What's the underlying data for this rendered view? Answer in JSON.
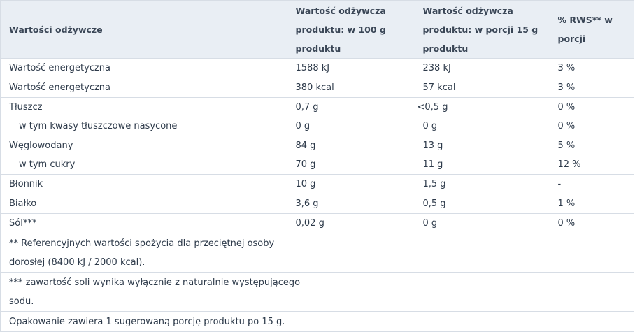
{
  "headers": {
    "col1": "Wartości odżywcze",
    "col2": "Wartość odżywcza produktu: w 100 g produktu",
    "col3": "Wartość odżywcza produktu: w porcji 15 g produktu",
    "col4": "% RWS** w porcji"
  },
  "rows": [
    {
      "name": "Wartość energetyczna",
      "per100": "1588 kJ",
      "perPortion": "238 kJ",
      "rws": "3 %"
    },
    {
      "name": "Wartość energetyczna",
      "per100": "380 kcal",
      "perPortion": "57 kcal",
      "rws": "3 %"
    },
    {
      "name": "Tłuszcz",
      "per100": "0,7 g",
      "perPortion": "<0,5 g",
      "rws": "0 %"
    },
    {
      "name": "w tym kwasy tłuszczowe nasycone",
      "per100": "0 g",
      "perPortion": "0 g",
      "rws": "0 %"
    },
    {
      "name": "Węglowodany",
      "per100": "84 g",
      "perPortion": "13 g",
      "rws": "5 %"
    },
    {
      "name": "w tym cukry",
      "per100": "70 g",
      "perPortion": "11 g",
      "rws": "12 %"
    },
    {
      "name": "Błonnik",
      "per100": "10 g",
      "perPortion": "1,5 g",
      "rws": "-"
    },
    {
      "name": "Białko",
      "per100": "3,6 g",
      "perPortion": "0,5 g",
      "rws": "1 %"
    },
    {
      "name": "Sól***",
      "per100": "0,02 g",
      "perPortion": "0 g",
      "rws": "0 %"
    }
  ],
  "notes": {
    "rws_line1": "** Referencyjnych wartości spożycia dla przeciętnej osoby",
    "rws_line2": "dorosłej (8400 kJ / 2000 kcal).",
    "salt_line1": "*** zawartość soli wynika wyłącznie z naturalnie występującego",
    "salt_line2": "sodu.",
    "package": "Opakowanie zawiera 1 sugerowaną porcję produktu po 15 g."
  }
}
